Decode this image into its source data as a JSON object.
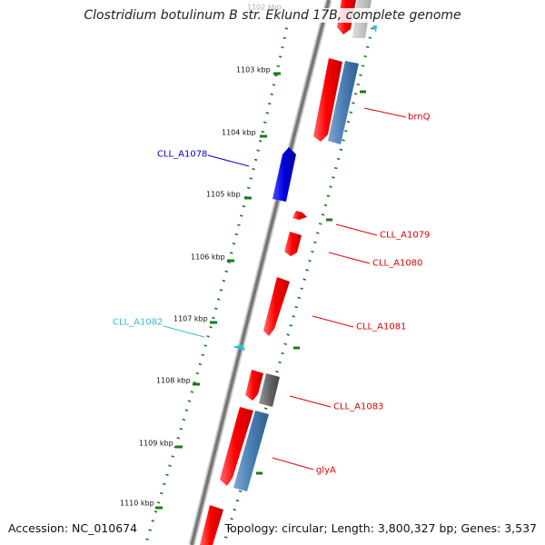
{
  "title": "Clostridium botulinum B str. Eklund 17B, complete genome",
  "footer": {
    "accession": "Accession: NC_010674",
    "summary": "Topology: circular; Length: 3,800,327 bp; Genes: 3,537"
  },
  "scale_ticks": [
    {
      "label": "1102 kbp",
      "faded": true
    },
    {
      "label": "1103 kbp"
    },
    {
      "label": "1104 kbp"
    },
    {
      "label": "1105 kbp"
    },
    {
      "label": "1106 kbp"
    },
    {
      "label": "1107 kbp"
    },
    {
      "label": "1108 kbp"
    },
    {
      "label": "1109 kbp"
    },
    {
      "label": "1110 kbp"
    }
  ],
  "gene_labels": [
    {
      "text": "brnQ",
      "color": "#e00000"
    },
    {
      "text": "CLL_A1078",
      "color": "#0000cc"
    },
    {
      "text": "CLL_A1079",
      "color": "#e00000"
    },
    {
      "text": "CLL_A1080",
      "color": "#e00000"
    },
    {
      "text": "CLL_A1081",
      "color": "#e00000"
    },
    {
      "text": "CLL_A1082",
      "color": "#33bbdd"
    },
    {
      "text": "CLL_A1083",
      "color": "#e00000"
    },
    {
      "text": "glyA",
      "color": "#e00000"
    }
  ],
  "colors": {
    "forward_gene": "#ff0000",
    "reverse_gene": "#0000dd",
    "rna_gene": "#4a7fb5",
    "pseudo_gene": "#666666",
    "small_feature": "#33bbdd",
    "backbone": "#888888",
    "scale_dots": "#1a7a1a"
  }
}
